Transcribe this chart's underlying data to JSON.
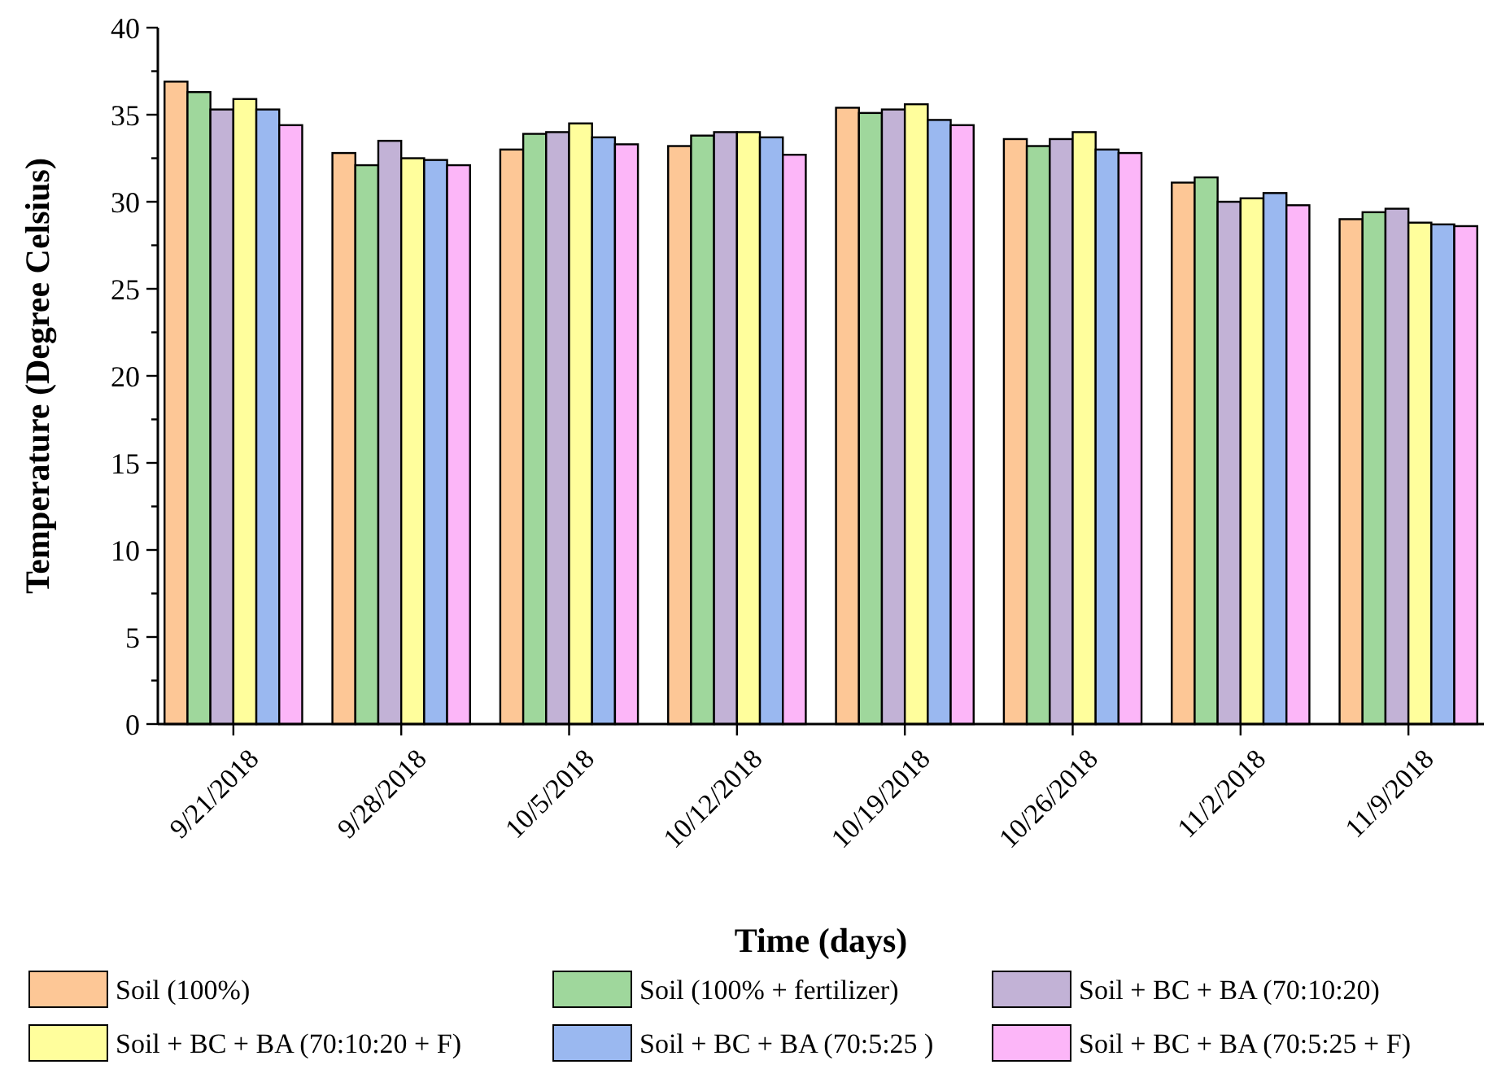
{
  "chart_data": {
    "type": "bar",
    "xlabel": "Time (days)",
    "ylabel": "Temperature (Degree Celsius)",
    "categories": [
      "9/21/2018",
      "9/28/2018",
      "10/5/2018",
      "10/12/2018",
      "10/19/2018",
      "10/26/2018",
      "11/2/2018",
      "11/9/2018"
    ],
    "ylim": [
      0,
      40
    ],
    "yticks": [
      0,
      {
        "value": 2.5,
        "label": null
      },
      5,
      {
        "value": 7.5,
        "label": null
      },
      10,
      {
        "value": 12.5,
        "label": null
      },
      15,
      {
        "value": 17.5,
        "label": null
      },
      20,
      {
        "value": 22.5,
        "label": null
      },
      25,
      {
        "value": 27.5,
        "label": null
      },
      30,
      {
        "value": 32.5,
        "label": null
      },
      35,
      {
        "value": 37.5,
        "label": null
      },
      40
    ],
    "legend": "bottom",
    "grid": false,
    "series": [
      {
        "name": "Soil (100%)",
        "color": "#fdc796",
        "values": [
          36.9,
          32.8,
          33.0,
          33.2,
          35.4,
          33.6,
          31.1,
          29.0
        ]
      },
      {
        "name": "Soil (100% + fertilizer)",
        "color": "#9fd79c",
        "values": [
          36.3,
          32.1,
          33.9,
          33.8,
          35.1,
          33.2,
          31.4,
          29.4
        ]
      },
      {
        "name": "Soil + BC + BA (70:10:20)",
        "color": "#c2b2d6",
        "values": [
          35.3,
          33.5,
          34.0,
          34.0,
          35.3,
          33.6,
          30.0,
          29.6
        ]
      },
      {
        "name": "Soil + BC + BA (70:10:20 + F)",
        "color": "#fffe9c",
        "values": [
          35.9,
          32.5,
          34.5,
          34.0,
          35.6,
          34.0,
          30.2,
          28.8
        ]
      },
      {
        "name": "Soil + BC + BA (70:5:25 )",
        "color": "#9ab8f0",
        "values": [
          35.3,
          32.4,
          33.7,
          33.7,
          34.7,
          33.0,
          30.5,
          28.7
        ]
      },
      {
        "name": "Soil + BC + BA (70:5:25 + F)",
        "color": "#fcb6f8",
        "values": [
          34.4,
          32.1,
          33.3,
          32.7,
          34.4,
          32.8,
          29.8,
          28.6
        ]
      }
    ]
  }
}
